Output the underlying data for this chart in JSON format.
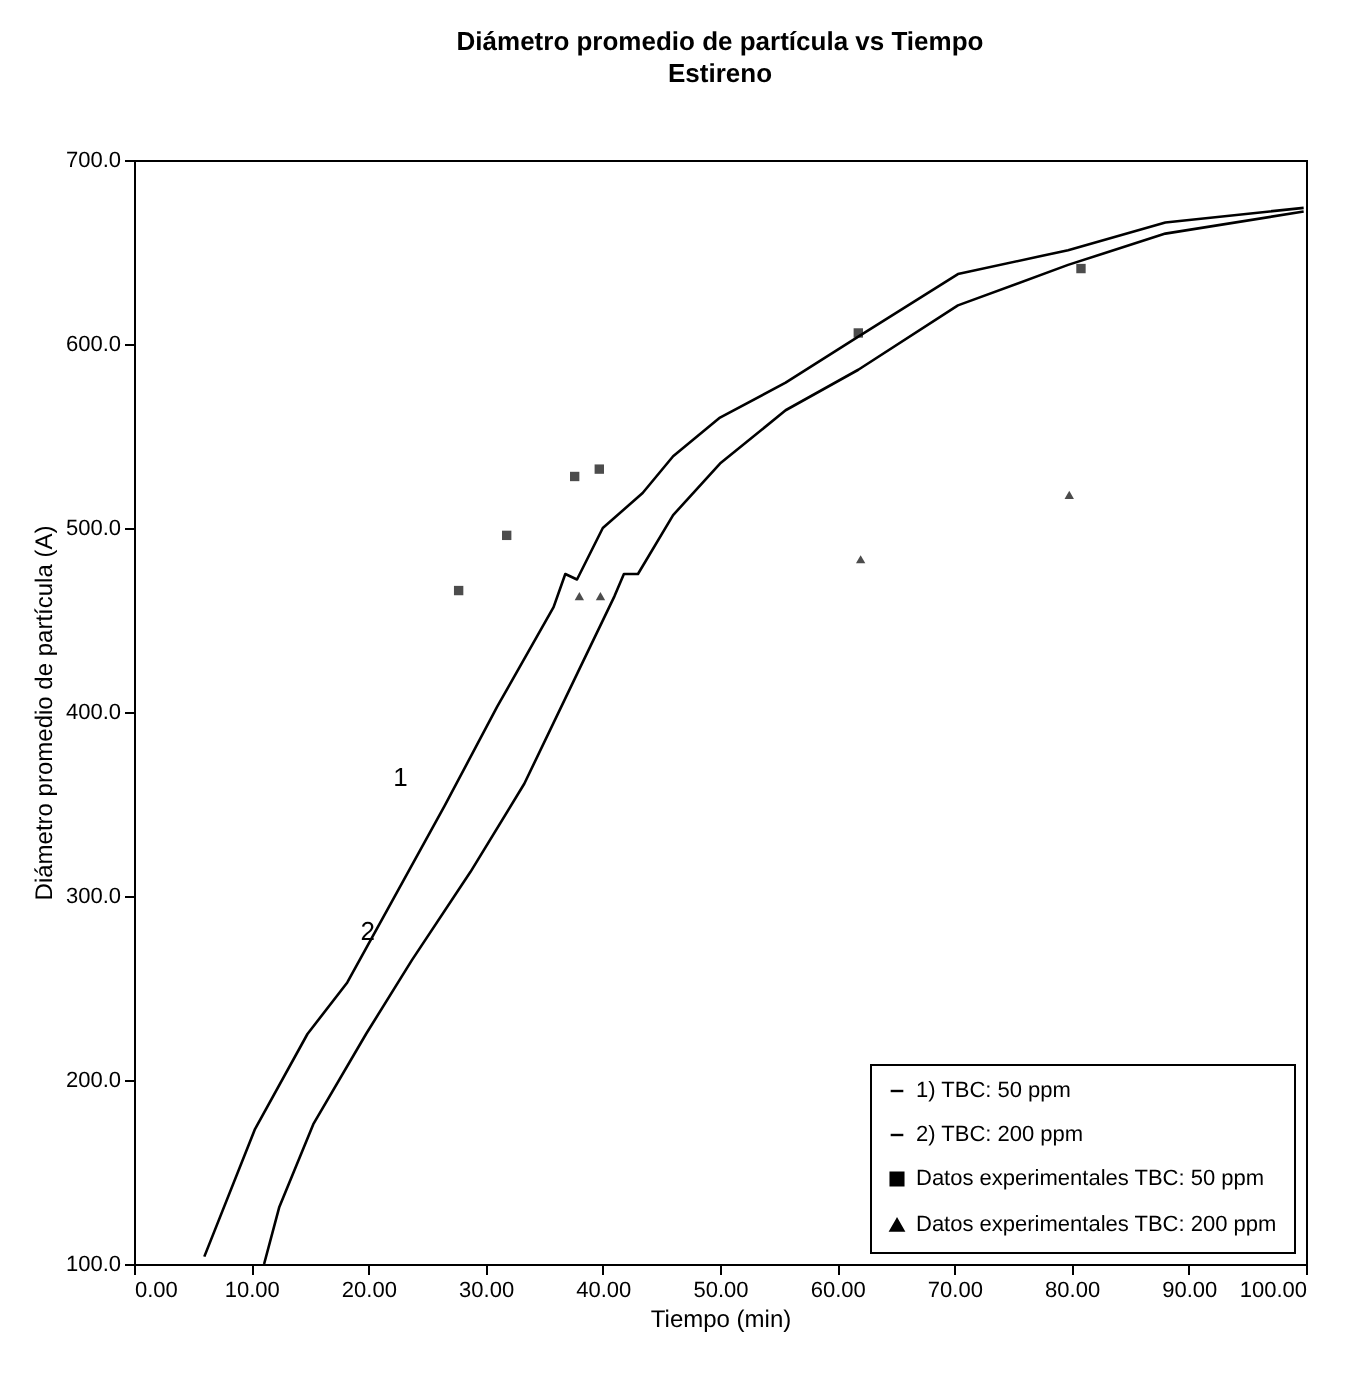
{
  "chart_data": {
    "type": "line",
    "title": "Diámetro promedio de partícula vs Tiempo",
    "subtitle": "Estireno",
    "xlabel": "Tiempo (min)",
    "ylabel": "Diámetro promedio de partícula (A)",
    "xlim": [
      0,
      100
    ],
    "ylim": [
      100,
      700
    ],
    "xticks": [
      {
        "value": 0,
        "label": "0.00"
      },
      {
        "value": 10,
        "label": "10.00"
      },
      {
        "value": 20,
        "label": "20.00"
      },
      {
        "value": 30,
        "label": "30.00"
      },
      {
        "value": 40,
        "label": "40.00"
      },
      {
        "value": 50,
        "label": "50.00"
      },
      {
        "value": 60,
        "label": "60.00"
      },
      {
        "value": 70,
        "label": "70.00"
      },
      {
        "value": 80,
        "label": "80.00"
      },
      {
        "value": 90,
        "label": "90.00"
      },
      {
        "value": 100,
        "label": "100.00"
      }
    ],
    "yticks": [
      {
        "value": 100,
        "label": "100.0"
      },
      {
        "value": 200,
        "label": "200.0"
      },
      {
        "value": 300,
        "label": "300.0"
      },
      {
        "value": 400,
        "label": "400.0"
      },
      {
        "value": 500,
        "label": "500.0"
      },
      {
        "value": 600,
        "label": "600.0"
      },
      {
        "value": 700,
        "label": "700.0"
      }
    ],
    "grid": false,
    "legend": "bottom right",
    "line_style": "solid",
    "series": [
      {
        "name": "1)  TBC: 50 ppm",
        "color": "#000000",
        "marker": "none",
        "x": [
          6,
          10.3,
          14.8,
          18.2,
          22,
          26.5,
          31,
          35.8,
          36.8,
          37.8,
          40,
          43.4,
          46,
          50,
          55.6,
          61.8,
          70.3,
          79.7,
          88,
          99.8
        ],
        "values": [
          104,
          173,
          225,
          253,
          297,
          349,
          403,
          457,
          475,
          472,
          500,
          519,
          539,
          560,
          579,
          604,
          638,
          651,
          666,
          674
        ]
      },
      {
        "name": "2)  TBC: 200 ppm",
        "color": "#000000",
        "marker": "none",
        "x": [
          11.1,
          12.4,
          15.3,
          19.8,
          23.7,
          28.7,
          33.3,
          37.6,
          41,
          41.8,
          43,
          46,
          50,
          55.6,
          61.8,
          70.3,
          79.7,
          88,
          99.8
        ],
        "values": [
          100,
          131,
          176,
          225,
          265,
          313,
          361,
          418,
          463,
          475,
          475,
          507,
          535,
          564,
          586,
          621,
          643,
          660,
          672
        ]
      },
      {
        "name": "Datos experimentales TBC: 50 ppm",
        "color": "#000000",
        "type": "scatter",
        "marker": "square",
        "x": [
          27.7,
          31.8,
          37.6,
          39.7,
          61.8,
          80.8
        ],
        "values": [
          466,
          496,
          528,
          532,
          606,
          641
        ]
      },
      {
        "name": "Datos experimentales TBC: 200 ppm",
        "color": "#000000",
        "type": "scatter",
        "marker": "triangle",
        "x": [
          38,
          39.8,
          62,
          79.8
        ],
        "values": [
          463,
          463,
          483,
          518
        ]
      }
    ],
    "annotations": [
      "1",
      "2"
    ]
  }
}
